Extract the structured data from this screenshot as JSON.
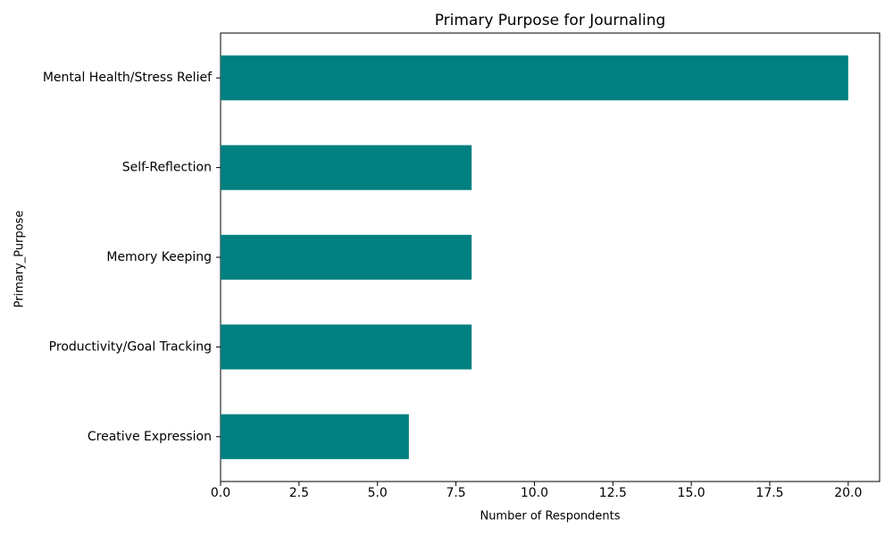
{
  "chart_data": {
    "type": "hbar",
    "title": "Primary Purpose for Journaling",
    "x_label": "Number of Respondents",
    "y_label": "Primary_Purpose",
    "categories": [
      "Mental Health/Stress Relief",
      "Self-Reflection",
      "Memory Keeping",
      "Productivity/Goal Tracking",
      "Creative Expression"
    ],
    "values": [
      20,
      8,
      8,
      8,
      6
    ],
    "color": "#008080",
    "xlim": [
      0,
      21
    ],
    "xticks": [
      {
        "value": 0,
        "label": "0.0"
      },
      {
        "value": 2.5,
        "label": "2.5"
      },
      {
        "value": 5,
        "label": "5.0"
      },
      {
        "value": 7.5,
        "label": "7.5"
      },
      {
        "value": 10,
        "label": "10.0"
      },
      {
        "value": 12.5,
        "label": "12.5"
      },
      {
        "value": 15,
        "label": "15.0"
      },
      {
        "value": 17.5,
        "label": "17.5"
      },
      {
        "value": 20,
        "label": "20.0"
      }
    ],
    "grid": false
  }
}
